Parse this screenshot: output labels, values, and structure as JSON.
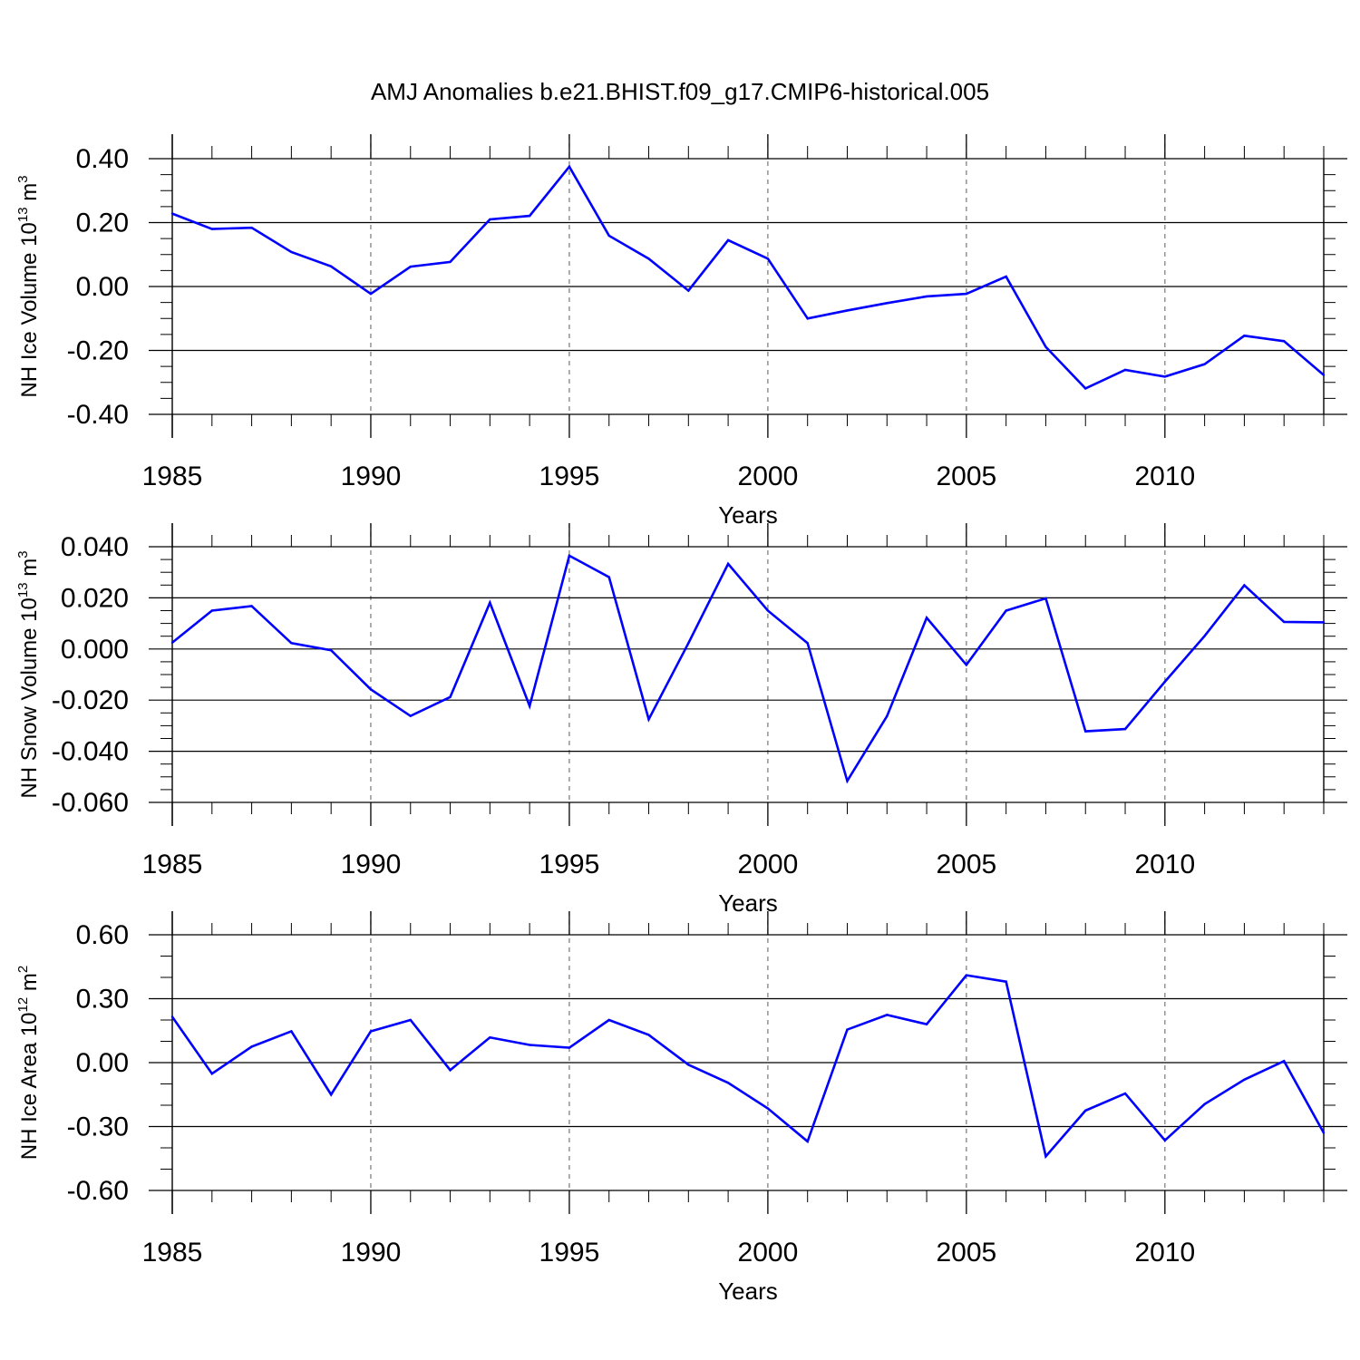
{
  "figure": {
    "title": "AMJ Anomalies b.e21.BHIST.f09_g17.CMIP6-historical.005"
  },
  "chart_data": [
    {
      "type": "line",
      "title": "",
      "xlabel": "Years",
      "ylabel_parts": {
        "text": "NH Ice Volume 10",
        "sup": "13",
        "unit": " m",
        "unit_sup": "3"
      },
      "xlim": [
        1985,
        2014
      ],
      "ylim": [
        -0.4,
        0.4
      ],
      "x_ticks": [
        1985,
        1990,
        1995,
        2000,
        2005,
        2010
      ],
      "x_tick_labels": [
        "1985",
        "1990",
        "1995",
        "2000",
        "2005",
        "2010"
      ],
      "y_ticks": [
        -0.4,
        -0.2,
        0.0,
        0.2,
        0.4
      ],
      "y_tick_labels": [
        "-0.40",
        "-0.20",
        "0.00",
        "0.20",
        "0.40"
      ],
      "y_minor_step": 0.05,
      "grid": "vertical dashed at major x ticks",
      "color": "#0000ff",
      "x": [
        1985,
        1986,
        1987,
        1988,
        1989,
        1990,
        1991,
        1992,
        1993,
        1994,
        1995,
        1996,
        1997,
        1998,
        1999,
        2000,
        2001,
        2002,
        2003,
        2004,
        2005,
        2006,
        2007,
        2008,
        2009,
        2010,
        2011,
        2012,
        2013,
        2014
      ],
      "values": [
        0.228,
        0.18,
        0.184,
        0.108,
        0.063,
        -0.023,
        0.062,
        0.077,
        0.21,
        0.221,
        0.375,
        0.159,
        0.087,
        -0.013,
        0.145,
        0.087,
        -0.1,
        -0.075,
        -0.052,
        -0.031,
        -0.023,
        0.031,
        -0.189,
        -0.319,
        -0.261,
        -0.282,
        -0.243,
        -0.154,
        -0.171,
        -0.277
      ]
    },
    {
      "type": "line",
      "title": "",
      "xlabel": "Years",
      "ylabel_parts": {
        "text": "NH Snow Volume 10",
        "sup": "13",
        "unit": " m",
        "unit_sup": "3"
      },
      "xlim": [
        1985,
        2014
      ],
      "ylim": [
        -0.06,
        0.04
      ],
      "x_ticks": [
        1985,
        1990,
        1995,
        2000,
        2005,
        2010
      ],
      "x_tick_labels": [
        "1985",
        "1990",
        "1995",
        "2000",
        "2005",
        "2010"
      ],
      "y_ticks": [
        -0.06,
        -0.04,
        -0.02,
        0.0,
        0.02,
        0.04
      ],
      "y_tick_labels": [
        "-0.060",
        "-0.040",
        "-0.020",
        "0.000",
        "0.020",
        "0.040"
      ],
      "y_minor_step": 0.005,
      "grid": "vertical dashed at major x ticks",
      "color": "#0000ff",
      "x": [
        1985,
        1986,
        1987,
        1988,
        1989,
        1990,
        1991,
        1992,
        1993,
        1994,
        1995,
        1996,
        1997,
        1998,
        1999,
        2000,
        2001,
        2002,
        2003,
        2004,
        2005,
        2006,
        2007,
        2008,
        2009,
        2010,
        2011,
        2012,
        2013,
        2014
      ],
      "values": [
        0.0025,
        0.015,
        0.0168,
        0.0023,
        -0.0005,
        -0.0158,
        -0.0262,
        -0.0188,
        0.0181,
        -0.0223,
        0.0365,
        0.0281,
        -0.0275,
        0.0023,
        0.0333,
        0.015,
        0.0023,
        -0.0516,
        -0.0263,
        0.0122,
        -0.0062,
        0.015,
        0.0198,
        -0.0322,
        -0.0313,
        -0.0128,
        0.0051,
        0.0249,
        0.0106,
        0.0104
      ]
    },
    {
      "type": "line",
      "title": "",
      "xlabel": "Years",
      "ylabel_parts": {
        "text": "NH Ice Area 10",
        "sup": "12",
        "unit": " m",
        "unit_sup": "2"
      },
      "xlim": [
        1985,
        2014
      ],
      "ylim": [
        -0.6,
        0.6
      ],
      "x_ticks": [
        1985,
        1990,
        1995,
        2000,
        2005,
        2010
      ],
      "x_tick_labels": [
        "1985",
        "1990",
        "1995",
        "2000",
        "2005",
        "2010"
      ],
      "y_ticks": [
        -0.6,
        -0.3,
        0.0,
        0.3,
        0.6
      ],
      "y_tick_labels": [
        "-0.60",
        "-0.30",
        "0.00",
        "0.30",
        "0.60"
      ],
      "y_minor_step": 0.1,
      "grid": "vertical dashed at major x ticks",
      "color": "#0000ff",
      "x": [
        1985,
        1986,
        1987,
        1988,
        1989,
        1990,
        1991,
        1992,
        1993,
        1994,
        1995,
        1996,
        1997,
        1998,
        1999,
        2000,
        2001,
        2002,
        2003,
        2004,
        2005,
        2006,
        2007,
        2008,
        2009,
        2010,
        2011,
        2012,
        2013,
        2014
      ],
      "values": [
        0.215,
        -0.052,
        0.075,
        0.147,
        -0.15,
        0.147,
        0.2,
        -0.035,
        0.118,
        0.083,
        0.07,
        0.2,
        0.13,
        -0.01,
        -0.095,
        -0.215,
        -0.37,
        0.155,
        0.224,
        0.18,
        0.41,
        0.38,
        -0.44,
        -0.225,
        -0.145,
        -0.365,
        -0.195,
        -0.08,
        0.007,
        -0.33
      ]
    }
  ]
}
